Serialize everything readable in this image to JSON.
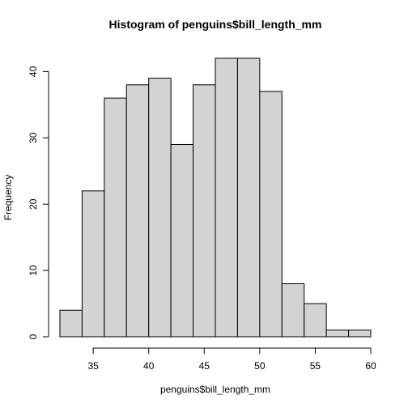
{
  "chart_data": {
    "type": "bar",
    "title": "Histogram of penguins$bill_length_mm",
    "xlabel": "penguins$bill_length_mm",
    "ylabel": "Frequency",
    "bin_edges": [
      32,
      34,
      36,
      38,
      40,
      42,
      44,
      46,
      48,
      50,
      52,
      54,
      56,
      58,
      60
    ],
    "values": [
      4,
      22,
      36,
      38,
      39,
      29,
      38,
      42,
      42,
      37,
      8,
      5,
      1,
      1
    ],
    "xlim": [
      32,
      60
    ],
    "ylim": [
      0,
      42
    ],
    "x_ticks": [
      35,
      40,
      45,
      50,
      55,
      60
    ],
    "x_tick_labels": [
      "35",
      "40",
      "45",
      "50",
      "55",
      "60"
    ],
    "y_ticks": [
      0,
      10,
      20,
      30,
      40
    ],
    "y_tick_labels": [
      "0",
      "10",
      "20",
      "30",
      "40"
    ],
    "bar_color": "#d3d3d3",
    "border_color": "#000000",
    "grid": false
  }
}
